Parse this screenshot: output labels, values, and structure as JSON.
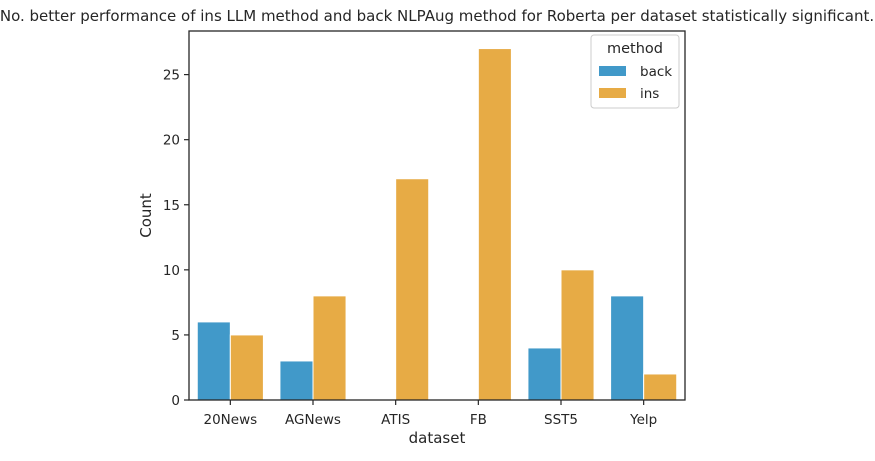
{
  "chart_data": {
    "type": "bar",
    "title": "No. better performance of ins LLM method and back NLPAug method for Roberta per dataset statistically significant.",
    "xlabel": "dataset",
    "ylabel": "Count",
    "categories": [
      "20News",
      "AGNews",
      "ATIS",
      "FB",
      "SST5",
      "Yelp"
    ],
    "series": [
      {
        "name": "back",
        "values": [
          6,
          3,
          0,
          0,
          4,
          8
        ],
        "color": "#4199C9"
      },
      {
        "name": "ins",
        "values": [
          5,
          8,
          17,
          27,
          10,
          2
        ],
        "color": "#E7AB45"
      }
    ],
    "ylim": [
      0,
      28.35
    ],
    "yticks": [
      0,
      5,
      10,
      15,
      20,
      25
    ],
    "grid": false,
    "legend": {
      "title": "method",
      "placement": "top-right"
    }
  }
}
